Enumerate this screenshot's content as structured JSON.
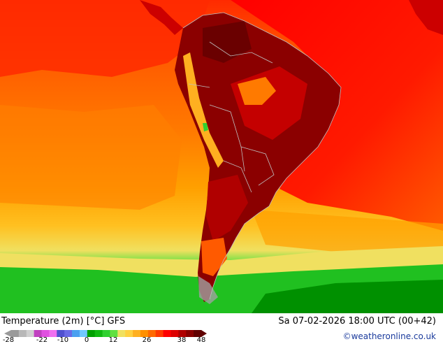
{
  "map": {
    "title": "Temperature (2m) [°C] GFS",
    "valid_time": "Sa 07-02-2026 18:00 UTC (00+42)",
    "credit": "©weatheronline.co.uk",
    "region": "South America"
  },
  "legend": {
    "ticks": [
      "-28",
      "-22",
      "-10",
      "0",
      "12",
      "26",
      "38",
      "48"
    ],
    "colors": [
      "#9a9a9a",
      "#b8b8b8",
      "#d0d0d0",
      "#c040c0",
      "#e050e0",
      "#f070f0",
      "#5050d0",
      "#6a6ae6",
      "#4aa0f0",
      "#70c8ff",
      "#00a000",
      "#10b810",
      "#30d030",
      "#60e040",
      "#f0e060",
      "#ffd040",
      "#ffb020",
      "#ff9000",
      "#ff6a00",
      "#ff3a00",
      "#ff0000",
      "#dd0000",
      "#b00000",
      "#880000",
      "#600000"
    ]
  }
}
